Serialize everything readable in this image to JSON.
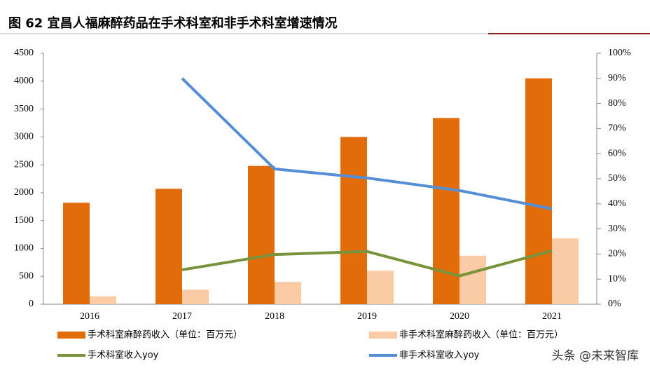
{
  "chart_data": {
    "type": "combo",
    "title": "图 62  宜昌人福麻醉药品在手术科室和非手术科室增速情况",
    "watermark": "头条 @未来智库",
    "categories": [
      "2016",
      "2017",
      "2018",
      "2019",
      "2020",
      "2021"
    ],
    "series": [
      {
        "name": "手术科室麻醉药收入（单位：百万元）",
        "type": "bar",
        "color": "#E36C0A",
        "values": [
          1820,
          2070,
          2480,
          3000,
          3340,
          4050
        ]
      },
      {
        "name": "非手术科室麻醉药收入（单位：百万元）",
        "type": "bar",
        "color": "#FBCBA5",
        "values": [
          140,
          260,
          400,
          600,
          870,
          1180
        ]
      },
      {
        "name": "手术科室收入yoy",
        "type": "line",
        "axis": "y2",
        "color": "#77933C",
        "values": [
          null,
          13.7,
          19.8,
          21.0,
          11.3,
          21.3
        ]
      },
      {
        "name": "非手术科室收入yoy",
        "type": "line",
        "axis": "y2",
        "color": "#558ED5",
        "values": [
          null,
          90.0,
          53.9,
          50.3,
          45.3,
          38.0
        ]
      }
    ],
    "ylim": [
      0,
      4500
    ],
    "yticks": [
      0,
      500,
      1000,
      1500,
      2000,
      2500,
      3000,
      3500,
      4000,
      4500
    ],
    "y2lim": [
      0,
      100
    ],
    "y2ticks": [
      {
        "value": 0,
        "label": "0%"
      },
      {
        "value": 10,
        "label": "10%"
      },
      {
        "value": 20,
        "label": "20%"
      },
      {
        "value": 30,
        "label": "30%"
      },
      {
        "value": 40,
        "label": "40%"
      },
      {
        "value": 50,
        "label": "50%"
      },
      {
        "value": 60,
        "label": "60%"
      },
      {
        "value": 70,
        "label": "70%"
      },
      {
        "value": 80,
        "label": "80%"
      },
      {
        "value": 90,
        "label": "90%"
      },
      {
        "value": 100,
        "label": "100%"
      }
    ],
    "grid": false,
    "legend": "bottom"
  }
}
